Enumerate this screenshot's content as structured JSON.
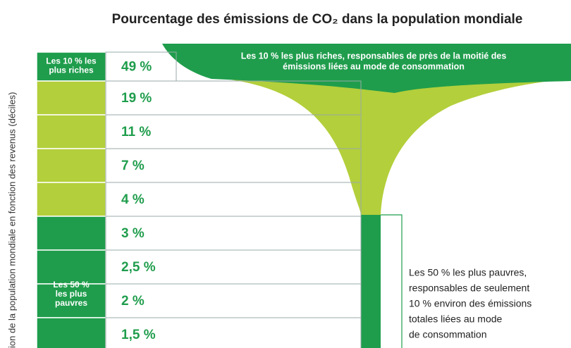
{
  "chart_data": {
    "type": "funnel",
    "title": "Pourcentage des émissions de CO₂ dans la population mondiale",
    "y_label": "ion de la population mondiale en fonction des revenus (déciles)",
    "values": [
      49,
      19,
      11,
      7,
      4,
      3,
      2.5,
      2,
      1.5
    ],
    "value_labels": [
      "49 %",
      "19 %",
      "11 %",
      "7 %",
      "4 %",
      "3 %",
      "2,5 %",
      "2 %",
      "1,5 %"
    ],
    "groups": [
      {
        "label": [
          "Les 10 % les",
          "plus riches"
        ],
        "color": "#1f9d4c"
      },
      {
        "label": [],
        "color": "#b3cf3b"
      },
      {
        "label": [
          "Les 50 %",
          "les plus",
          "pauvres"
        ],
        "color": "#1f9d4c"
      }
    ],
    "value_color": "#1f9d4c",
    "annotations": [
      [
        "Les 10 % les plus riches, responsables de près de la moitié des",
        "émissions liées au mode de consommation"
      ],
      [
        "Les 50 % les plus pauvres,",
        "responsables de seulement",
        "10 % environ des émissions",
        "totales liées au mode",
        "de consommation"
      ]
    ]
  }
}
